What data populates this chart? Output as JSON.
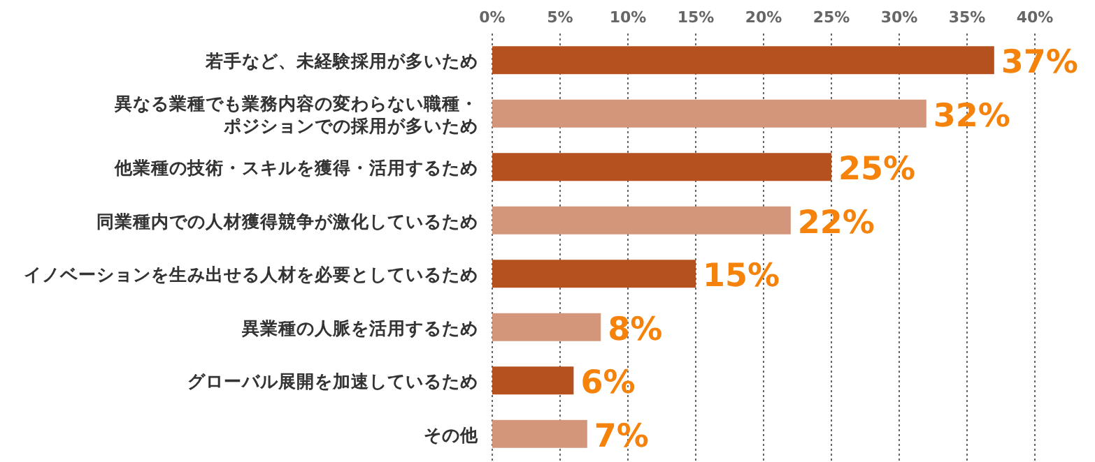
{
  "chart_data": {
    "type": "bar",
    "orientation": "horizontal",
    "categories": [
      "若手など、未経験採用が多いため",
      "異なる業種でも業務内容の変わらない職種・ポジションでの採用が多いため",
      "他業種の技術・スキルを獲得・活用するため",
      "同業種内での人材獲得競争が激化しているため",
      "イノベーションを生み出せる人材を必要としているため",
      "異業種の人脈を活用するため",
      "グローバル展開を加速しているため",
      "その他"
    ],
    "values": [
      37,
      32,
      25,
      22,
      15,
      8,
      6,
      7
    ],
    "colors": [
      "#b5511e",
      "#d3967a",
      "#b5511e",
      "#d3967a",
      "#b5511e",
      "#d3967a",
      "#b5511e",
      "#d3967a"
    ],
    "value_labels": [
      "37%",
      "32%",
      "25%",
      "22%",
      "15%",
      "8%",
      "6%",
      "7%"
    ],
    "xlim": [
      0,
      40
    ],
    "xticks": [
      {
        "value": 0,
        "label": "0%"
      },
      {
        "value": 5,
        "label": "5%"
      },
      {
        "value": 10,
        "label": "10%"
      },
      {
        "value": 15,
        "label": "15%"
      },
      {
        "value": 20,
        "label": "20%"
      },
      {
        "value": 25,
        "label": "25%"
      },
      {
        "value": 30,
        "label": "30%"
      },
      {
        "value": 35,
        "label": "35%"
      },
      {
        "value": 40,
        "label": "40%"
      }
    ],
    "grid": "x"
  }
}
